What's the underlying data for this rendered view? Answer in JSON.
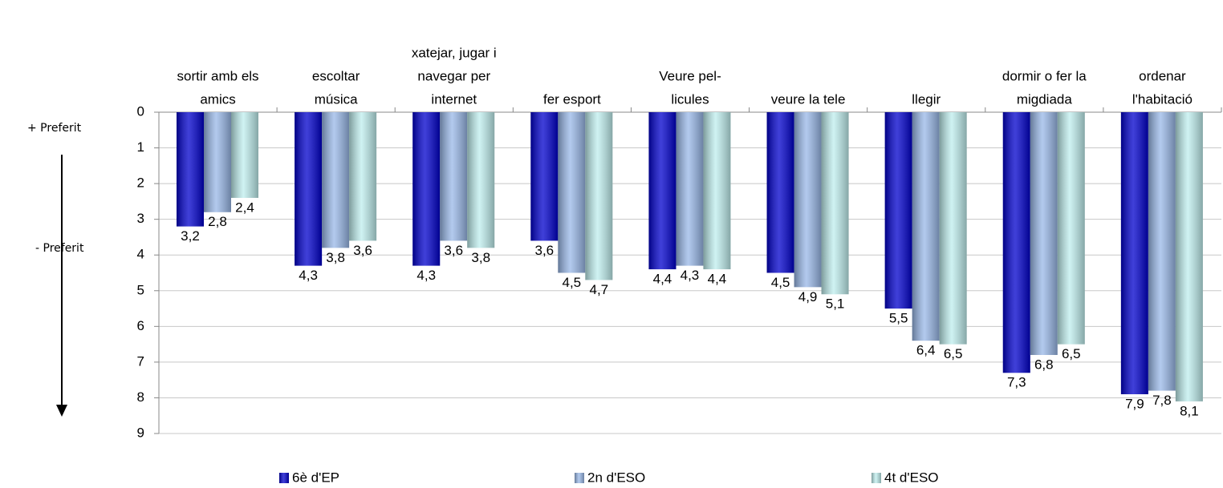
{
  "chart_data": {
    "type": "bar",
    "categories": [
      [
        "sortir amb els",
        "amics"
      ],
      [
        "escoltar",
        "música"
      ],
      [
        "xatejar, jugar i",
        "navegar per",
        "internet"
      ],
      [
        "fer esport"
      ],
      [
        "Veure pel-",
        "licules"
      ],
      [
        "veure la tele"
      ],
      [
        "llegir"
      ],
      [
        "dormir o fer la",
        "migdiada"
      ],
      [
        "ordenar",
        "l'habitació"
      ]
    ],
    "series": [
      {
        "name": "6è d'EP",
        "color": "#0000cc",
        "values": [
          3.2,
          4.3,
          4.3,
          3.6,
          4.4,
          4.5,
          5.5,
          7.3,
          7.9
        ],
        "value_labels": [
          "3,2",
          "4,3",
          "4,3",
          "3,6",
          "4,4",
          "4,5",
          "5,5",
          "7,3",
          "7,9"
        ]
      },
      {
        "name": "2n d'ESO",
        "color": "#99b8e8",
        "values": [
          2.8,
          3.8,
          3.6,
          4.5,
          4.3,
          4.9,
          6.4,
          6.8,
          7.8
        ],
        "value_labels": [
          "2,8",
          "3,8",
          "3,6",
          "4,5",
          "4,3",
          "4,9",
          "6,4",
          "6,8",
          "7,8"
        ]
      },
      {
        "name": "4t d'ESO",
        "color": "#bfeeee",
        "values": [
          2.4,
          3.6,
          3.8,
          4.7,
          4.4,
          5.1,
          6.5,
          6.5,
          8.1
        ],
        "value_labels": [
          "2,4",
          "3,6",
          "3,8",
          "4,7",
          "4,4",
          "5,1",
          "6,5",
          "6,5",
          "8,1"
        ]
      }
    ],
    "ylim": [
      0,
      9
    ],
    "yticks": [
      0,
      1,
      2,
      3,
      4,
      5,
      6,
      7,
      8,
      9
    ],
    "y_inverted": true,
    "grid": true,
    "legend": "bottom",
    "annotations": [
      "+ Preferit",
      "- Preferit"
    ]
  }
}
